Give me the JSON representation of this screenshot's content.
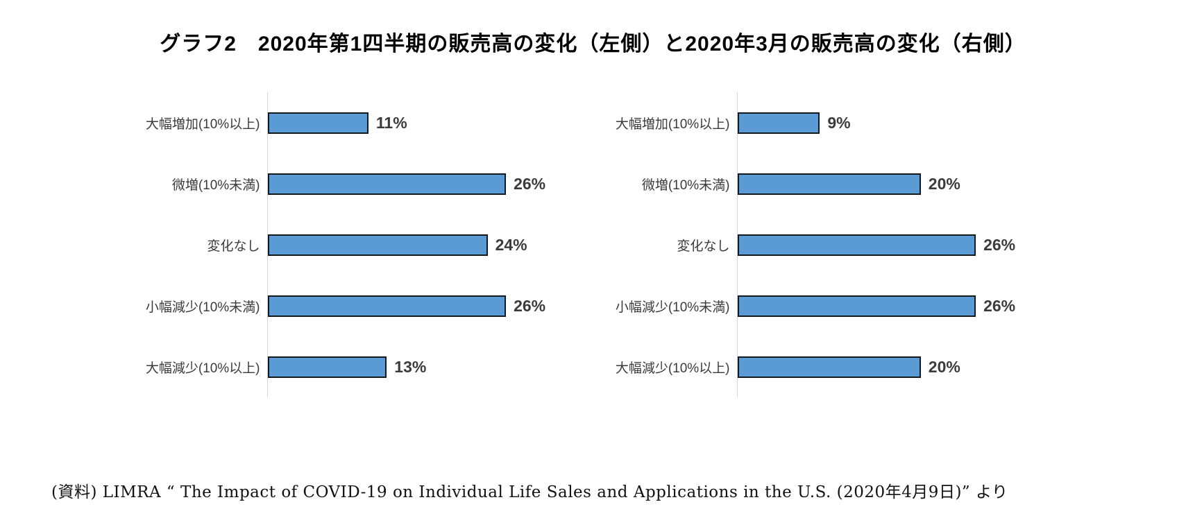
{
  "page": {
    "title": "グラフ2　2020年第1四半期の販売高の変化（左側）と2020年3月の販売高の変化（右側）",
    "source_note": "(資料) LIMRA “ The Impact of COVID-19 on Individual Life Sales and Applications in the U.S. (2020年4月9日)” より"
  },
  "colors": {
    "bar_fill": "#5B9BD5",
    "bar_border": "#101820",
    "axis_line": "#d6d6d6",
    "label_text": "#3b3b3b",
    "title_text": "#000000"
  },
  "chart_data": [
    {
      "type": "bar",
      "orientation": "horizontal",
      "panel": "left",
      "subject": "2020年第1四半期の販売高の変化",
      "categories": [
        "大幅増加(10%以上)",
        "微増(10%未満)",
        "変化なし",
        "小幅減少(10%未満)",
        "大幅減少(10%以上)"
      ],
      "values": [
        11,
        26,
        24,
        26,
        13
      ],
      "value_labels": [
        "11%",
        "26%",
        "24%",
        "26%",
        "13%"
      ],
      "xlim": [
        0,
        28
      ],
      "grid": false,
      "legend": false
    },
    {
      "type": "bar",
      "orientation": "horizontal",
      "panel": "right",
      "subject": "2020年3月の販売高の変化",
      "categories": [
        "大幅増加(10%以上)",
        "微増(10%未満)",
        "変化なし",
        "小幅減少(10%未満)",
        "大幅減少(10%以上)"
      ],
      "values": [
        9,
        20,
        26,
        26,
        20
      ],
      "value_labels": [
        "9%",
        "20%",
        "26%",
        "26%",
        "20%"
      ],
      "xlim": [
        0,
        28
      ],
      "grid": false,
      "legend": false
    }
  ]
}
